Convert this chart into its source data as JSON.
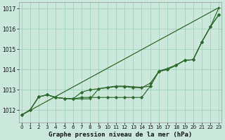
{
  "xlabel": "Graphe pression niveau de la mer (hPa)",
  "background_color": "#cce8dc",
  "grid_color": "#99ccb8",
  "line_color": "#2d6a2d",
  "ylim": [
    1011.4,
    1017.3
  ],
  "xlim": [
    -0.3,
    23.3
  ],
  "yticks": [
    1012,
    1013,
    1014,
    1015,
    1016,
    1017
  ],
  "xticks": [
    0,
    1,
    2,
    3,
    4,
    5,
    6,
    7,
    8,
    9,
    10,
    11,
    12,
    13,
    14,
    15,
    16,
    17,
    18,
    19,
    20,
    21,
    22,
    23
  ],
  "straight_line": [
    [
      0,
      1011.75
    ],
    [
      23,
      1017.05
    ]
  ],
  "line_a": [
    1011.75,
    1012.0,
    1012.65,
    1012.75,
    1012.62,
    1012.57,
    1012.55,
    1012.55,
    1012.55,
    1013.05,
    1013.12,
    1013.18,
    1013.18,
    1013.15,
    1013.12,
    1013.18,
    1013.92,
    1014.05,
    1014.22,
    1014.45,
    1014.48,
    1015.35,
    1016.1,
    1017.05
  ],
  "line_b": [
    1011.75,
    1012.0,
    1012.65,
    1012.75,
    1012.62,
    1012.57,
    1012.55,
    1012.88,
    1013.0,
    1013.05,
    1013.1,
    1013.15,
    1013.15,
    1013.1,
    1013.1,
    1013.32,
    1013.9,
    1014.0,
    1014.2,
    1014.45,
    1014.48,
    1015.35,
    1016.1,
    1016.7
  ],
  "line_c": [
    1011.75,
    1012.0,
    1012.65,
    1012.75,
    1012.62,
    1012.57,
    1012.55,
    1012.62,
    1012.62,
    1012.62,
    1012.62,
    1012.62,
    1012.62,
    1012.62,
    1012.62,
    1013.18,
    1013.9,
    1014.0,
    1014.2,
    1014.45,
    1014.48,
    1015.35,
    1016.1,
    1016.7
  ]
}
